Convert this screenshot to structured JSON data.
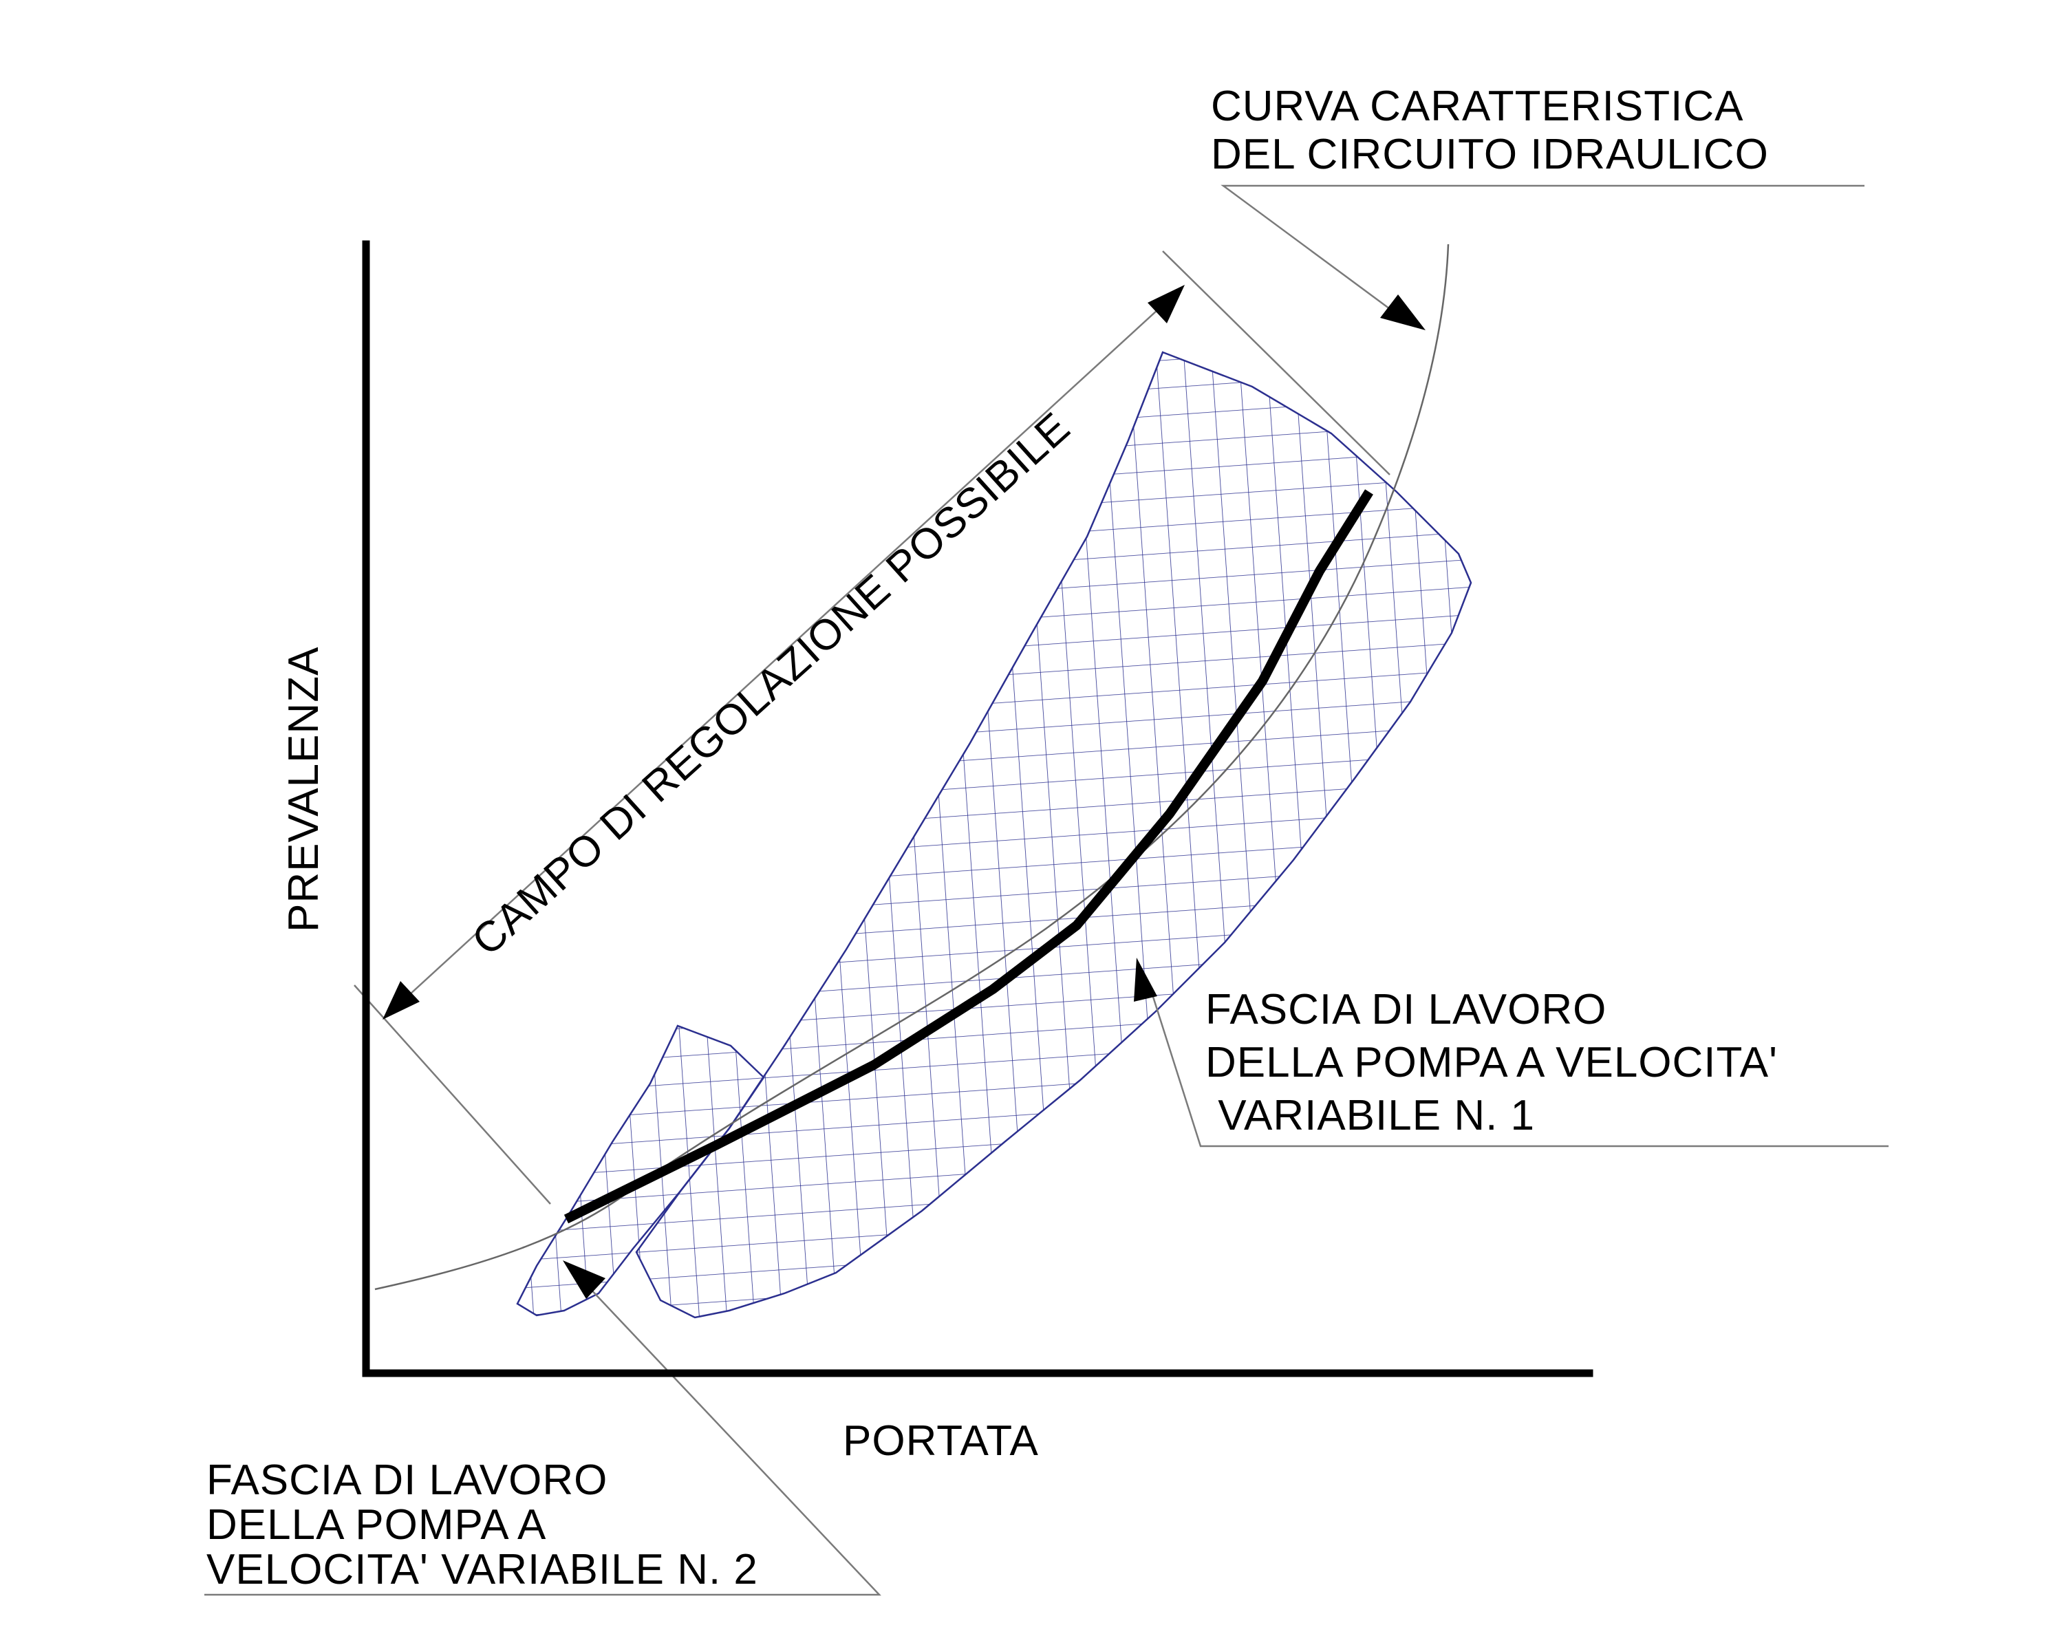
{
  "axes": {
    "x_label": "PORTATA",
    "y_label": "PREVALENZA"
  },
  "labels": {
    "system_curve": {
      "line1": "CURVA CARATTERISTICA",
      "line2": "DEL CIRCUITO IDRAULICO"
    },
    "regulation_range": "CAMPO DI REGOLAZIONE POSSIBILE",
    "band_pump_1": {
      "line1": "FASCIA DI LAVORO",
      "line2": "DELLA POMPA A  VELOCITA'",
      "line3": " VARIABILE N. 1"
    },
    "band_pump_2": {
      "line1": "FASCIA DI LAVORO",
      "line2": "DELLA POMPA A",
      "line3": "VELOCITA' VARIABILE N. 2"
    }
  },
  "colors": {
    "band_hatch": "#2b2f8f",
    "axes": "#000000",
    "leader_lines": "#7a7a7a"
  }
}
